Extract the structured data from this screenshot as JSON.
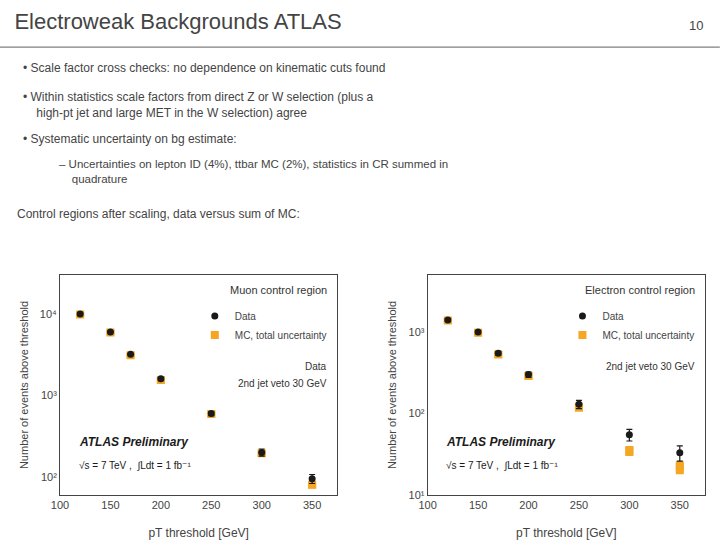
{
  "title": "Electroweak Backgrounds ATLAS",
  "annotations": [
    "10",
    "• Scale factor cross checks: no dependence on kinematic cuts found",
    "• Within statistics scale factors from direct Z or W selection (plus a\nhigh-pt jet and large MET in the W selection) agree",
    "• Systematic uncertainty on bg estimate:",
    "– Uncertainties on lepton ID (4%), ttbar MC (2%), statistics in CR summed in\nquadrature",
    "Control regions after scaling, data versus sum of MC:"
  ],
  "chart_data": [
    {
      "type": "scatter",
      "title": "Muon control region",
      "x_label": "pT threshold [GeV]",
      "y_label": "Number of events above threshold",
      "log": "y",
      "grid": false,
      "legend": "upper right",
      "x": [
        120,
        150,
        170,
        200,
        250,
        300,
        350
      ],
      "xlim": [
        100,
        375
      ],
      "xticks": [
        100,
        150,
        200,
        250,
        300,
        350
      ],
      "ylim": [
        60,
        30000
      ],
      "yticks": [
        {
          "value": 100,
          "label": "10²"
        },
        {
          "value": 1000,
          "label": "10³"
        },
        {
          "value": 10000,
          "label": "10⁴"
        }
      ],
      "series": [
        {
          "name": "Data",
          "marker": "circle",
          "color": "#1a1a1a",
          "values": [
            10000,
            6000,
            3200,
            1600,
            600,
            200,
            95
          ],
          "errors": [
            120,
            90,
            65,
            50,
            35,
            20,
            12
          ]
        },
        {
          "name": "MC, total uncertainty",
          "marker": "square",
          "color": "#f5a623",
          "values": [
            9800,
            5900,
            3100,
            1550,
            590,
            195,
            80
          ],
          "errors": [
            600,
            400,
            220,
            120,
            50,
            18,
            8
          ]
        }
      ],
      "annotations": [
        "Data",
        "2nd jet veto 30 GeV",
        "ATLAS Preliminary",
        "√s = 7 TeV ,  ∫Ldt = 1 fb⁻¹"
      ]
    },
    {
      "type": "scatter",
      "title": "Electron control region",
      "x_label": "pT threshold [GeV]",
      "y_label": "Number of events above threshold",
      "log": "y",
      "grid": false,
      "legend": "upper right",
      "x": [
        120,
        150,
        170,
        200,
        250,
        300,
        350
      ],
      "xlim": [
        100,
        375
      ],
      "xticks": [
        100,
        150,
        200,
        250,
        300,
        350
      ],
      "ylim": [
        10,
        5000
      ],
      "yticks": [
        {
          "value": 10,
          "label": "10¹"
        },
        {
          "value": 100,
          "label": "10²"
        },
        {
          "value": 1000,
          "label": "10³"
        }
      ],
      "series": [
        {
          "name": "Data",
          "marker": "circle",
          "color": "#1a1a1a",
          "values": [
            1400,
            1000,
            550,
            300,
            130,
            55,
            33
          ],
          "errors": [
            50,
            40,
            30,
            22,
            15,
            9,
            7
          ]
        },
        {
          "name": "MC, total uncertainty",
          "marker": "square",
          "color": "#f5a623",
          "values": [
            1380,
            980,
            530,
            290,
            120,
            35,
            22
          ],
          "errors": [
            120,
            90,
            50,
            30,
            15,
            5,
            4
          ]
        }
      ],
      "annotations": [
        "2nd jet veto 30 GeV",
        "ATLAS Preliminary",
        "√s = 7 TeV ,  ∫Ldt = 1 fb⁻¹"
      ]
    }
  ]
}
